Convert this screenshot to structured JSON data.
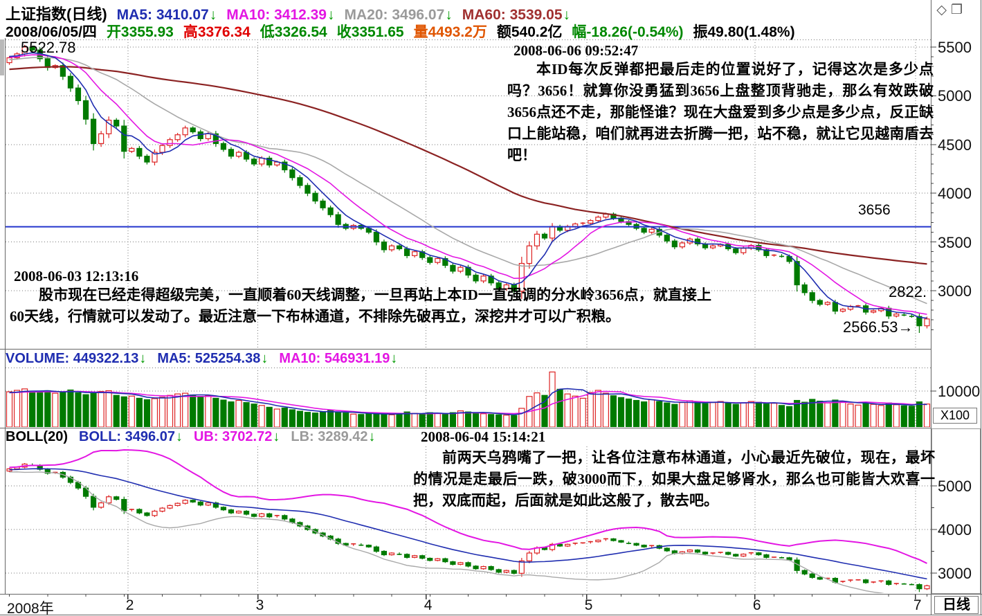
{
  "header": {
    "title": "上证指数(日线)",
    "row1_segments": [
      {
        "text": "MA5: 3410.07",
        "color": "#1f2db0",
        "arrow": "↓"
      },
      {
        "text": "MA10: 3412.39",
        "color": "#e316e3",
        "arrow": "↓"
      },
      {
        "text": "MA20: 3496.07",
        "color": "#9a9a9a",
        "arrow": "↓"
      },
      {
        "text": "MA60: 3539.05",
        "color": "#a03030",
        "arrow": "↓"
      }
    ],
    "row2_segments": [
      {
        "text": "2008/06/05/四",
        "color": "#000000"
      },
      {
        "text": "开3355.93",
        "color": "#008800"
      },
      {
        "text": "高3376.34",
        "color": "#e00000"
      },
      {
        "text": "低3326.54",
        "color": "#008800"
      },
      {
        "text": "收3351.65",
        "color": "#008800"
      },
      {
        "text": "量4493.2万",
        "color": "#e05500"
      },
      {
        "text": "额540.2亿",
        "color": "#000000"
      },
      {
        "text": "幅-18.26(-0.54%)",
        "color": "#008800"
      },
      {
        "text": "振49.80(1.48%)",
        "color": "#000000"
      }
    ],
    "window_icons": "◇ ❐"
  },
  "volume_header": {
    "segments": [
      {
        "text": "VOLUME: 449322.13",
        "color": "#1f2db0",
        "arrow": "↓"
      },
      {
        "text": "MA5: 525254.38",
        "color": "#1f2db0",
        "arrow": "↓"
      },
      {
        "text": "MA10: 546931.19",
        "color": "#e316e3",
        "arrow": "↓"
      }
    ]
  },
  "boll_header": {
    "segments": [
      {
        "text": "BOLL(20)",
        "color": "#000000"
      },
      {
        "text": "BOLL: 3496.07",
        "color": "#1f2db0",
        "arrow": "↓"
      },
      {
        "text": "UB: 3702.72",
        "color": "#e316e3",
        "arrow": "↓"
      },
      {
        "text": "LB: 3289.42",
        "color": "#9a9a9a",
        "arrow": "↓"
      }
    ]
  },
  "annotations": [
    {
      "datetime": "2008-06-06 09:52:47",
      "text": "本ID每次反弹都把最后走的位置说好了，记得这次是多少点吗？3656！就算你没勇猛到3656上盘整顶背驰走，那么有效跌破3656点还不走，那能怪谁？现在大盘爱到多少点是多少点，反正缺口上能站稳，咱们就再进去折腾一把，站不稳，就让它见越南盾去吧！"
    },
    {
      "datetime": "2008-06-03 12:13:16",
      "text": "股市现在已经走得超级完美，一直顺着60天线调整，一旦再站上本ID一直强调的分水岭3656点，就直接上60天线，行情就可以发动了。最近注意一下布林通道，不排除先破再立，深挖井才可以广积粮。"
    },
    {
      "datetime": "2008-06-04 15:14:21",
      "text": "前两天乌鸦嘴了一把，让各位注意布林通道，小心最近先破位，现在，最坏的情况是走最后一跌，破3000而下，如果大盘足够肾水，那么也可能皆大欢喜一把，双底而起，后面就是如此这般了，散去吧。"
    }
  ],
  "price_labels": {
    "peak": "5522.78",
    "level_3656": "3656",
    "right_upper": "2822.",
    "right_lower": "2566.53→"
  },
  "right_axis": {
    "main_ticks": [
      "5500",
      "5000",
      "4500",
      "4000",
      "3500",
      "3000"
    ],
    "volume_tick": "10000",
    "volume_unit": "X100",
    "boll_ticks": [
      "5000",
      "4000",
      "3000"
    ],
    "period_label": "日线"
  },
  "bottom_axis": {
    "labels": [
      "2008年",
      "2",
      "3",
      "4",
      "5",
      "6",
      "7"
    ]
  },
  "colors": {
    "up": "#dd2222",
    "down": "#007a00",
    "ma5": "#1f2db0",
    "ma10": "#e316e3",
    "ma20": "#a8a8a8",
    "ma60": "#8b2222",
    "level_line": "#2233cc",
    "grid": "#777777",
    "separator": "#666666",
    "vol_ma5": "#1f2db0",
    "vol_ma10": "#e316e3",
    "boll_mid": "#1f2db0",
    "boll_ub": "#e316e3",
    "boll_lb": "#a8a8a8"
  },
  "chart_data": {
    "type": "candlestick",
    "title": "上证指数(日线) 2008",
    "panes": [
      "price with MA5/MA10/MA20/MA60",
      "volume with MA5/MA10",
      "BOLL(20) bands with candles"
    ],
    "x_month_labels": [
      "2008年",
      "2",
      "3",
      "4",
      "5",
      "6",
      "7"
    ],
    "month_start_indices": [
      0,
      16,
      33,
      55,
      76,
      98,
      119
    ],
    "price_axis_ticks": [
      5500,
      5000,
      4500,
      4000,
      3500,
      3000
    ],
    "volume_axis_ticks": [
      10000
    ],
    "volume_unit": "X100",
    "boll_axis_ticks": [
      5000,
      4000,
      3000
    ],
    "horizontal_level": 3656,
    "annotated_prices": {
      "peak_high": 5522.78,
      "recent_low": 2566.53,
      "right_label": 2822
    },
    "selected_day": {
      "date": "2008/06/05",
      "open": 3355.93,
      "high": 3376.34,
      "low": 3326.54,
      "close": 3351.65,
      "volume_wan": 4493.2,
      "amount_yi": 540.2,
      "change": -18.26,
      "change_pct": -0.54,
      "amplitude": 49.8,
      "amplitude_pct": 1.48
    },
    "indicator_values": {
      "MA5": 3410.07,
      "MA10": 3412.39,
      "MA20": 3496.07,
      "MA60": 3539.05,
      "VOLUME": 449322.13,
      "VOL_MA5": 525254.38,
      "VOL_MA10": 546931.19,
      "BOLL": 3496.07,
      "UB": 3702.72,
      "LB": 3289.42
    },
    "closes": [
      5390,
      5430,
      5500,
      5470,
      5380,
      5290,
      5310,
      5200,
      5080,
      4950,
      4760,
      4510,
      4610,
      4750,
      4690,
      4430,
      4460,
      4380,
      4320,
      4420,
      4490,
      4550,
      4600,
      4670,
      4630,
      4560,
      4610,
      4510,
      4450,
      4380,
      4420,
      4350,
      4300,
      4360,
      4290,
      4320,
      4240,
      4160,
      4080,
      4000,
      3920,
      3850,
      3780,
      3680,
      3640,
      3670,
      3640,
      3600,
      3500,
      3420,
      3460,
      3430,
      3360,
      3400,
      3340,
      3290,
      3330,
      3260,
      3200,
      3240,
      3160,
      3100,
      3150,
      3080,
      3020,
      3060,
      2995,
      3280,
      3460,
      3580,
      3540,
      3660,
      3620,
      3660,
      3685,
      3693,
      3720,
      3755,
      3786,
      3745,
      3710,
      3680,
      3640,
      3600,
      3630,
      3570,
      3510,
      3450,
      3490,
      3530,
      3480,
      3440,
      3460,
      3475,
      3430,
      3390,
      3435,
      3465,
      3420,
      3360,
      3365,
      3352,
      3300,
      3060,
      2980,
      2900,
      2860,
      2880,
      2790,
      2810,
      2840,
      2845,
      2780,
      2795,
      2820,
      2740,
      2760,
      2750,
      2736,
      2640,
      2710
    ],
    "volumes": [
      9800,
      10200,
      10600,
      9900,
      9600,
      10100,
      9400,
      9800,
      10300,
      9500,
      9000,
      9300,
      9900,
      10100,
      8800,
      8400,
      8600,
      8000,
      7600,
      7900,
      8300,
      8800,
      9200,
      9400,
      8900,
      8400,
      8700,
      8000,
      7500,
      7000,
      7400,
      6800,
      6400,
      6000,
      5500,
      5000,
      5300,
      4800,
      4400,
      4100,
      3900,
      4300,
      4600,
      4200,
      3900,
      3600,
      3500,
      3900,
      3700,
      3500,
      3400,
      3800,
      4200,
      3800,
      3600,
      4000,
      3800,
      3600,
      4000,
      4500,
      4200,
      3900,
      3700,
      3500,
      3400,
      3300,
      3200,
      5200,
      8500,
      9500,
      8800,
      15300,
      10500,
      9200,
      8600,
      8000,
      9600,
      10200,
      9400,
      8700,
      8200,
      7800,
      7400,
      7000,
      7600,
      7100,
      6700,
      6300,
      6800,
      7300,
      6900,
      6500,
      6800,
      7100,
      6700,
      6300,
      6700,
      7100,
      6900,
      6400,
      6600,
      6000,
      5700,
      7400,
      6900,
      7700,
      7200,
      6700,
      7500,
      7000,
      6400,
      6100,
      6600,
      6300,
      6000,
      6700,
      6200,
      5900,
      5800,
      7000,
      6400
    ]
  }
}
